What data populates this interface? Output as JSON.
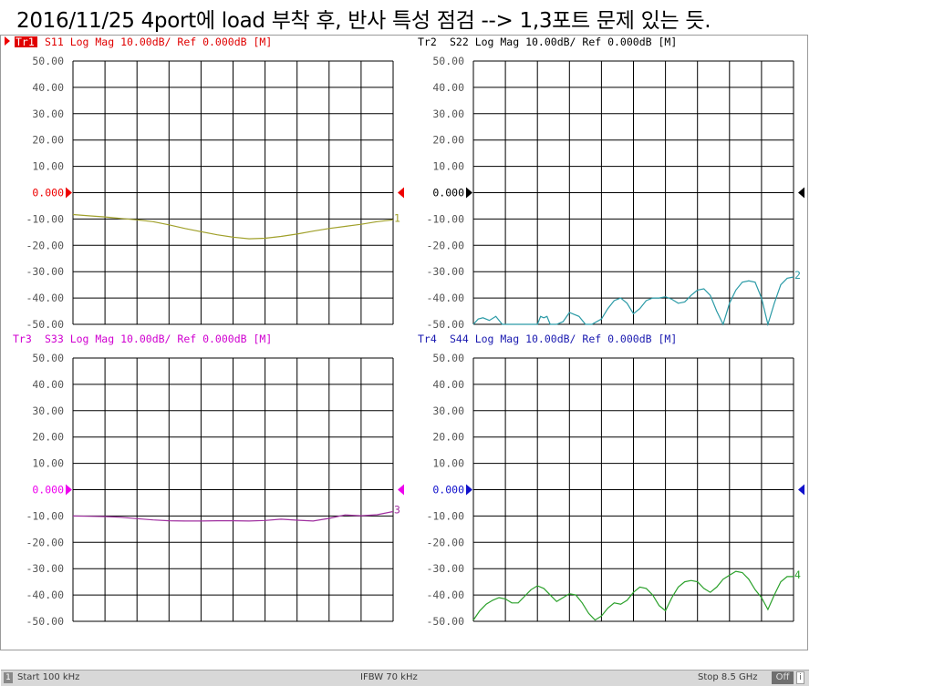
{
  "caption": "2016/11/25 4port에 load 부착 후, 반사 특성 점검 --> 1,3포트 문제 있는 듯.",
  "status": {
    "channel": "1",
    "start": "Start 100 kHz",
    "ifbw": "IFBW 70 kHz",
    "stop": "Stop 8.5 GHz",
    "off": "Off"
  },
  "chart_data": [
    {
      "type": "line",
      "title": "S11 Log Mag 10.00dB/ Ref 0.000dB [M]",
      "trace_tag": "Tr1",
      "trace_number": "1",
      "color": "#a0a02a",
      "label_color": "#e00000",
      "ref_color": "#ee0000",
      "ylim": [
        -50,
        50
      ],
      "xlim": [
        0,
        10
      ],
      "yticks": [
        "50.00",
        "40.00",
        "30.00",
        "20.00",
        "10.00",
        "0.000",
        "-10.00",
        "-20.00",
        "-30.00",
        "-40.00",
        "-50.00"
      ],
      "x": [
        0,
        0.5,
        1,
        1.5,
        2,
        2.5,
        3,
        3.5,
        4,
        4.5,
        5,
        5.5,
        6,
        6.5,
        7,
        7.5,
        8,
        8.5,
        9,
        9.5,
        10
      ],
      "y": [
        -8.3,
        -8.8,
        -9.2,
        -9.8,
        -10.3,
        -11.0,
        -12.2,
        -13.6,
        -14.8,
        -16.0,
        -16.9,
        -17.5,
        -17.3,
        -16.6,
        -15.7,
        -14.6,
        -13.6,
        -12.8,
        -12.0,
        -11.0,
        -10.3
      ]
    },
    {
      "type": "line",
      "title": "S22 Log Mag 10.00dB/ Ref 0.000dB [M]",
      "trace_tag": "Tr2",
      "trace_number": "2",
      "color": "#2a9aa6",
      "label_color": "#000000",
      "ref_color": "#000000",
      "ylim": [
        -50,
        50
      ],
      "xlim": [
        0,
        10
      ],
      "yticks": [
        "50.00",
        "40.00",
        "30.00",
        "20.00",
        "10.00",
        "0.000",
        "-10.00",
        "-20.00",
        "-30.00",
        "-40.00",
        "-50.00"
      ],
      "x": [
        0,
        0.15,
        0.3,
        0.5,
        0.7,
        0.9,
        1.0,
        1.2,
        1.5,
        1.8,
        2.0,
        2.1,
        2.2,
        2.3,
        2.4,
        2.6,
        2.8,
        3.0,
        3.1,
        3.3,
        3.5,
        3.7,
        4.0,
        4.2,
        4.4,
        4.6,
        4.8,
        5.0,
        5.2,
        5.4,
        5.6,
        5.8,
        6.0,
        6.2,
        6.4,
        6.6,
        6.8,
        7.0,
        7.2,
        7.4,
        7.6,
        7.8,
        8.0,
        8.2,
        8.4,
        8.6,
        8.8,
        9.0,
        9.2,
        9.4,
        9.6,
        9.8,
        10.0
      ],
      "y": [
        -50,
        -48,
        -47.5,
        -48.5,
        -47,
        -50,
        -50,
        -50,
        -50,
        -50,
        -50,
        -47,
        -47.5,
        -47,
        -50,
        -50,
        -49,
        -45.5,
        -46,
        -47,
        -50,
        -50,
        -48,
        -44,
        -41,
        -40,
        -42,
        -46,
        -44,
        -41,
        -40,
        -40,
        -39.5,
        -40.5,
        -42,
        -41.5,
        -39,
        -37,
        -36.5,
        -39,
        -45,
        -50,
        -42,
        -37,
        -34,
        -33.5,
        -34,
        -40,
        -50,
        -42,
        -35,
        -32.5,
        -32
      ]
    },
    {
      "type": "line",
      "title": "S33 Log Mag 10.00dB/ Ref 0.000dB [M]",
      "trace_tag": "Tr3",
      "trace_number": "3",
      "color": "#a030a0",
      "label_color": "#d000d0",
      "ref_color": "#ee00ee",
      "ylim": [
        -50,
        50
      ],
      "xlim": [
        0,
        10
      ],
      "yticks": [
        "50.00",
        "40.00",
        "30.00",
        "20.00",
        "10.00",
        "0.000",
        "-10.00",
        "-20.00",
        "-30.00",
        "-40.00",
        "-50.00"
      ],
      "x": [
        0,
        0.5,
        1,
        1.5,
        2,
        2.5,
        3,
        3.5,
        4,
        4.5,
        5,
        5.5,
        6,
        6.5,
        7,
        7.5,
        8,
        8.5,
        9,
        9.5,
        10
      ],
      "y": [
        -10.0,
        -10.1,
        -10.2,
        -10.5,
        -11.0,
        -11.5,
        -11.8,
        -11.9,
        -11.9,
        -11.8,
        -11.8,
        -11.9,
        -11.7,
        -11.2,
        -11.6,
        -11.9,
        -10.9,
        -9.6,
        -9.9,
        -9.5,
        -8.3
      ]
    },
    {
      "type": "line",
      "title": "S44 Log Mag 10.00dB/ Ref 0.000dB [M]",
      "trace_tag": "Tr4",
      "trace_number": "4",
      "color": "#2aa02a",
      "label_color": "#1a1ab0",
      "ref_color": "#1010cc",
      "ylim": [
        -50,
        50
      ],
      "xlim": [
        0,
        10
      ],
      "yticks": [
        "50.00",
        "40.00",
        "30.00",
        "20.00",
        "10.00",
        "0.000",
        "-10.00",
        "-20.00",
        "-30.00",
        "-40.00",
        "-50.00"
      ],
      "x": [
        0,
        0.2,
        0.4,
        0.6,
        0.8,
        1.0,
        1.2,
        1.4,
        1.6,
        1.8,
        2.0,
        2.2,
        2.4,
        2.6,
        2.8,
        3.0,
        3.2,
        3.4,
        3.6,
        3.8,
        4.0,
        4.2,
        4.4,
        4.6,
        4.8,
        5.0,
        5.2,
        5.4,
        5.6,
        5.8,
        6.0,
        6.2,
        6.4,
        6.6,
        6.8,
        7.0,
        7.2,
        7.4,
        7.6,
        7.8,
        8.0,
        8.2,
        8.4,
        8.6,
        8.8,
        9.0,
        9.2,
        9.4,
        9.6,
        9.8,
        10.0
      ],
      "y": [
        -49.5,
        -46,
        -43.5,
        -42,
        -41,
        -41.5,
        -43,
        -43,
        -40.5,
        -38,
        -36.5,
        -37.5,
        -40,
        -42.5,
        -41,
        -39.5,
        -40,
        -43,
        -47,
        -49.5,
        -48,
        -45,
        -43,
        -43.5,
        -42,
        -39,
        -37,
        -37.5,
        -40,
        -44,
        -46,
        -41,
        -37,
        -35,
        -34.5,
        -35,
        -37.5,
        -39,
        -37,
        -34,
        -32.5,
        -31,
        -31.5,
        -34,
        -38,
        -41,
        -45.5,
        -40,
        -35,
        -33,
        -33
      ]
    }
  ]
}
